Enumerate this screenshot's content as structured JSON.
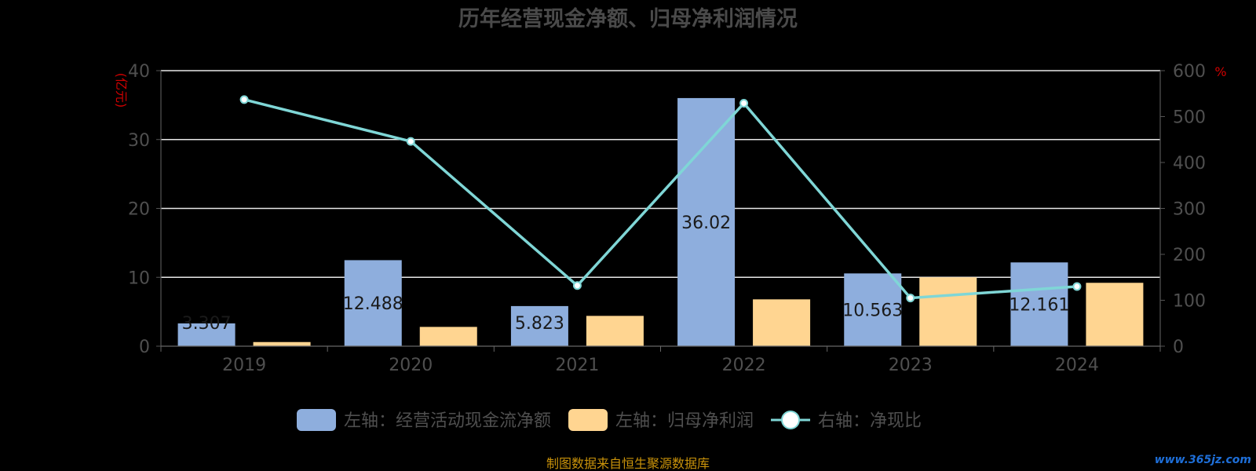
{
  "chart_data": {
    "type": "bar",
    "title": "历年经营现金净额、归母净利润情况",
    "categories": [
      "2019",
      "2020",
      "2021",
      "2022",
      "2023",
      "2024"
    ],
    "left_axis": {
      "unit": "(亿元)",
      "ylim": [
        0,
        40
      ],
      "ticks": [
        "0",
        "10",
        "20",
        "30",
        "40"
      ]
    },
    "right_axis": {
      "unit": "%",
      "ylim": [
        0,
        600
      ],
      "ticks": [
        "0",
        "100",
        "200",
        "300",
        "400",
        "500",
        "600"
      ]
    },
    "series": [
      {
        "name": "左轴：经营活动现金流净额",
        "type": "bar",
        "axis": "left",
        "color": "#8eaedd",
        "values": [
          3.307,
          12.488,
          5.823,
          36.02,
          10.563,
          12.161
        ],
        "labels": [
          "3.307",
          "12.488",
          "5.823",
          "36.02",
          "10.563",
          "12.161"
        ]
      },
      {
        "name": "左轴：归母净利润",
        "type": "bar",
        "axis": "left",
        "color": "#ffd591",
        "values": [
          0.6,
          2.8,
          4.4,
          6.8,
          10.0,
          9.2
        ]
      },
      {
        "name": "右轴：净现比",
        "type": "line",
        "axis": "right",
        "color": "#7fd6d6",
        "values": [
          537,
          446,
          132,
          529,
          105,
          130
        ]
      }
    ],
    "grid": true,
    "legend_position": "bottom"
  },
  "footer": {
    "source": "制图数据来自恒生聚源数据库",
    "watermark": "www.365jz.com"
  }
}
